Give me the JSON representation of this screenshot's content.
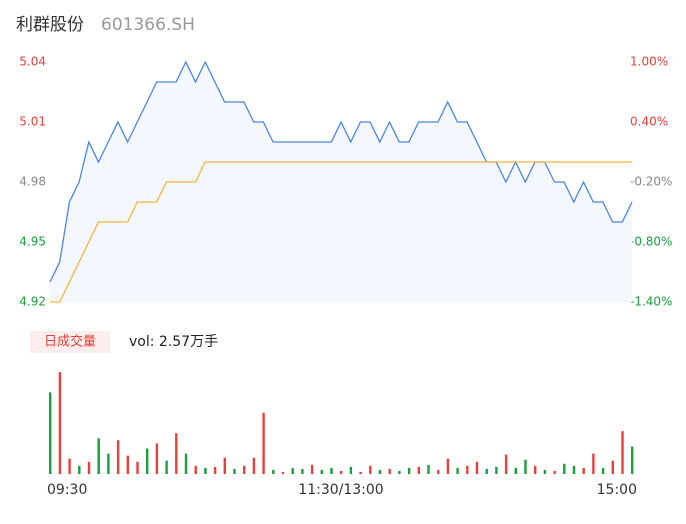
{
  "header": {
    "title": "利群股份",
    "code": "601366.SH"
  },
  "chart_data": [
    {
      "type": "line",
      "x": [
        0,
        4,
        8,
        12,
        16,
        20,
        24,
        28,
        32,
        36,
        40,
        44,
        48,
        52,
        56,
        60,
        64,
        68,
        72,
        76,
        80,
        84,
        88,
        92,
        96,
        100,
        104,
        108,
        112,
        116,
        120,
        124,
        128,
        132,
        136,
        140,
        144,
        148,
        152,
        156,
        160,
        164,
        168,
        172,
        176,
        180,
        184,
        188,
        192,
        196,
        200,
        204,
        208,
        212,
        216,
        220,
        224,
        228,
        232,
        236,
        240
      ],
      "xlim": [
        0,
        240
      ],
      "xticks": [
        {
          "value": 0,
          "label": "09:30"
        },
        {
          "value": 120,
          "label": "11:30/13:00"
        },
        {
          "value": 240,
          "label": "15:00"
        }
      ],
      "ylim": [
        4.92,
        5.04
      ],
      "yticks": [
        5.04,
        5.01,
        4.98,
        4.95,
        4.92
      ],
      "ytick_colors": [
        "#e8403a",
        "#e8403a",
        "#888888",
        "#1a9e3f",
        "#1a9e3f"
      ],
      "y2lim": [
        -1.4,
        1.0
      ],
      "y2ticks": [
        {
          "value": 1.0,
          "label": "1.00%"
        },
        {
          "value": 0.4,
          "label": "0.40%"
        },
        {
          "value": -0.2,
          "label": "-0.20%"
        },
        {
          "value": -0.8,
          "label": "-0.80%"
        },
        {
          "value": -1.4,
          "label": "-1.40%"
        }
      ],
      "area_color": "#f4f7fd",
      "series": [
        {
          "color": "#4a86e0",
          "values": [
            4.93,
            4.94,
            4.97,
            4.98,
            5.0,
            4.99,
            5.0,
            5.01,
            5.0,
            5.01,
            5.02,
            5.03,
            5.03,
            5.03,
            5.04,
            5.03,
            5.04,
            5.03,
            5.02,
            5.02,
            5.02,
            5.01,
            5.01,
            5.0,
            5.0,
            5.0,
            5.0,
            5.0,
            5.0,
            5.0,
            5.01,
            5.0,
            5.01,
            5.01,
            5.0,
            5.01,
            5.0,
            5.0,
            5.01,
            5.01,
            5.01,
            5.02,
            5.01,
            5.01,
            5.0,
            4.99,
            4.99,
            4.98,
            4.99,
            4.98,
            4.99,
            4.99,
            4.98,
            4.98,
            4.97,
            4.98,
            4.97,
            4.97,
            4.96,
            4.96,
            4.97
          ]
        },
        {
          "color": "#f5b53c",
          "values": [
            4.92,
            4.92,
            4.93,
            4.94,
            4.95,
            4.96,
            4.96,
            4.96,
            4.96,
            4.97,
            4.97,
            4.97,
            4.98,
            4.98,
            4.98,
            4.98,
            4.99,
            4.99,
            4.99,
            4.99,
            4.99,
            4.99,
            4.99,
            4.99,
            4.99,
            4.99,
            4.99,
            4.99,
            4.99,
            4.99,
            4.99,
            4.99,
            4.99,
            4.99,
            4.99,
            4.99,
            4.99,
            4.99,
            4.99,
            4.99,
            4.99,
            4.99,
            4.99,
            4.99,
            4.99,
            4.99,
            4.99,
            4.99,
            4.99,
            4.99,
            4.99,
            4.99,
            4.99,
            4.99,
            4.99,
            4.99,
            4.99,
            4.99,
            4.99,
            4.99,
            4.99
          ]
        }
      ]
    },
    {
      "type": "bar",
      "title": "日成交量",
      "label": "vol: 2.57万手",
      "ylim": [
        0,
        1000
      ],
      "values": [
        800,
        1000,
        150,
        80,
        120,
        350,
        200,
        330,
        180,
        120,
        250,
        300,
        130,
        400,
        200,
        80,
        60,
        70,
        160,
        50,
        80,
        160,
        600,
        40,
        20,
        60,
        50,
        90,
        40,
        60,
        30,
        70,
        20,
        80,
        40,
        50,
        30,
        60,
        70,
        90,
        40,
        150,
        60,
        80,
        120,
        50,
        70,
        190,
        60,
        140,
        80,
        40,
        30,
        100,
        80,
        60,
        200,
        60,
        130,
        420,
        270
      ],
      "colors": [
        "#1a9e3f",
        "#e8403a",
        "#e8403a",
        "#1a9e3f",
        "#e8403a",
        "#1a9e3f",
        "#1a9e3f",
        "#e8403a",
        "#e8403a",
        "#e8403a",
        "#1a9e3f",
        "#e8403a",
        "#1a9e3f",
        "#e8403a",
        "#1a9e3f",
        "#e8403a",
        "#1a9e3f",
        "#e8403a",
        "#e8403a",
        "#1a9e3f",
        "#e8403a",
        "#e8403a",
        "#e8403a",
        "#1a9e3f",
        "#e8403a",
        "#1a9e3f",
        "#1a9e3f",
        "#e8403a",
        "#1a9e3f",
        "#1a9e3f",
        "#e8403a",
        "#1a9e3f",
        "#e8403a",
        "#e8403a",
        "#1a9e3f",
        "#e8403a",
        "#1a9e3f",
        "#1a9e3f",
        "#e8403a",
        "#1a9e3f",
        "#e8403a",
        "#e8403a",
        "#1a9e3f",
        "#e8403a",
        "#e8403a",
        "#1a9e3f",
        "#1a9e3f",
        "#e8403a",
        "#1a9e3f",
        "#1a9e3f",
        "#e8403a",
        "#1a9e3f",
        "#e8403a",
        "#1a9e3f",
        "#1a9e3f",
        "#e8403a",
        "#e8403a",
        "#1a9e3f",
        "#e8403a",
        "#e8403a",
        "#1a9e3f"
      ]
    }
  ]
}
